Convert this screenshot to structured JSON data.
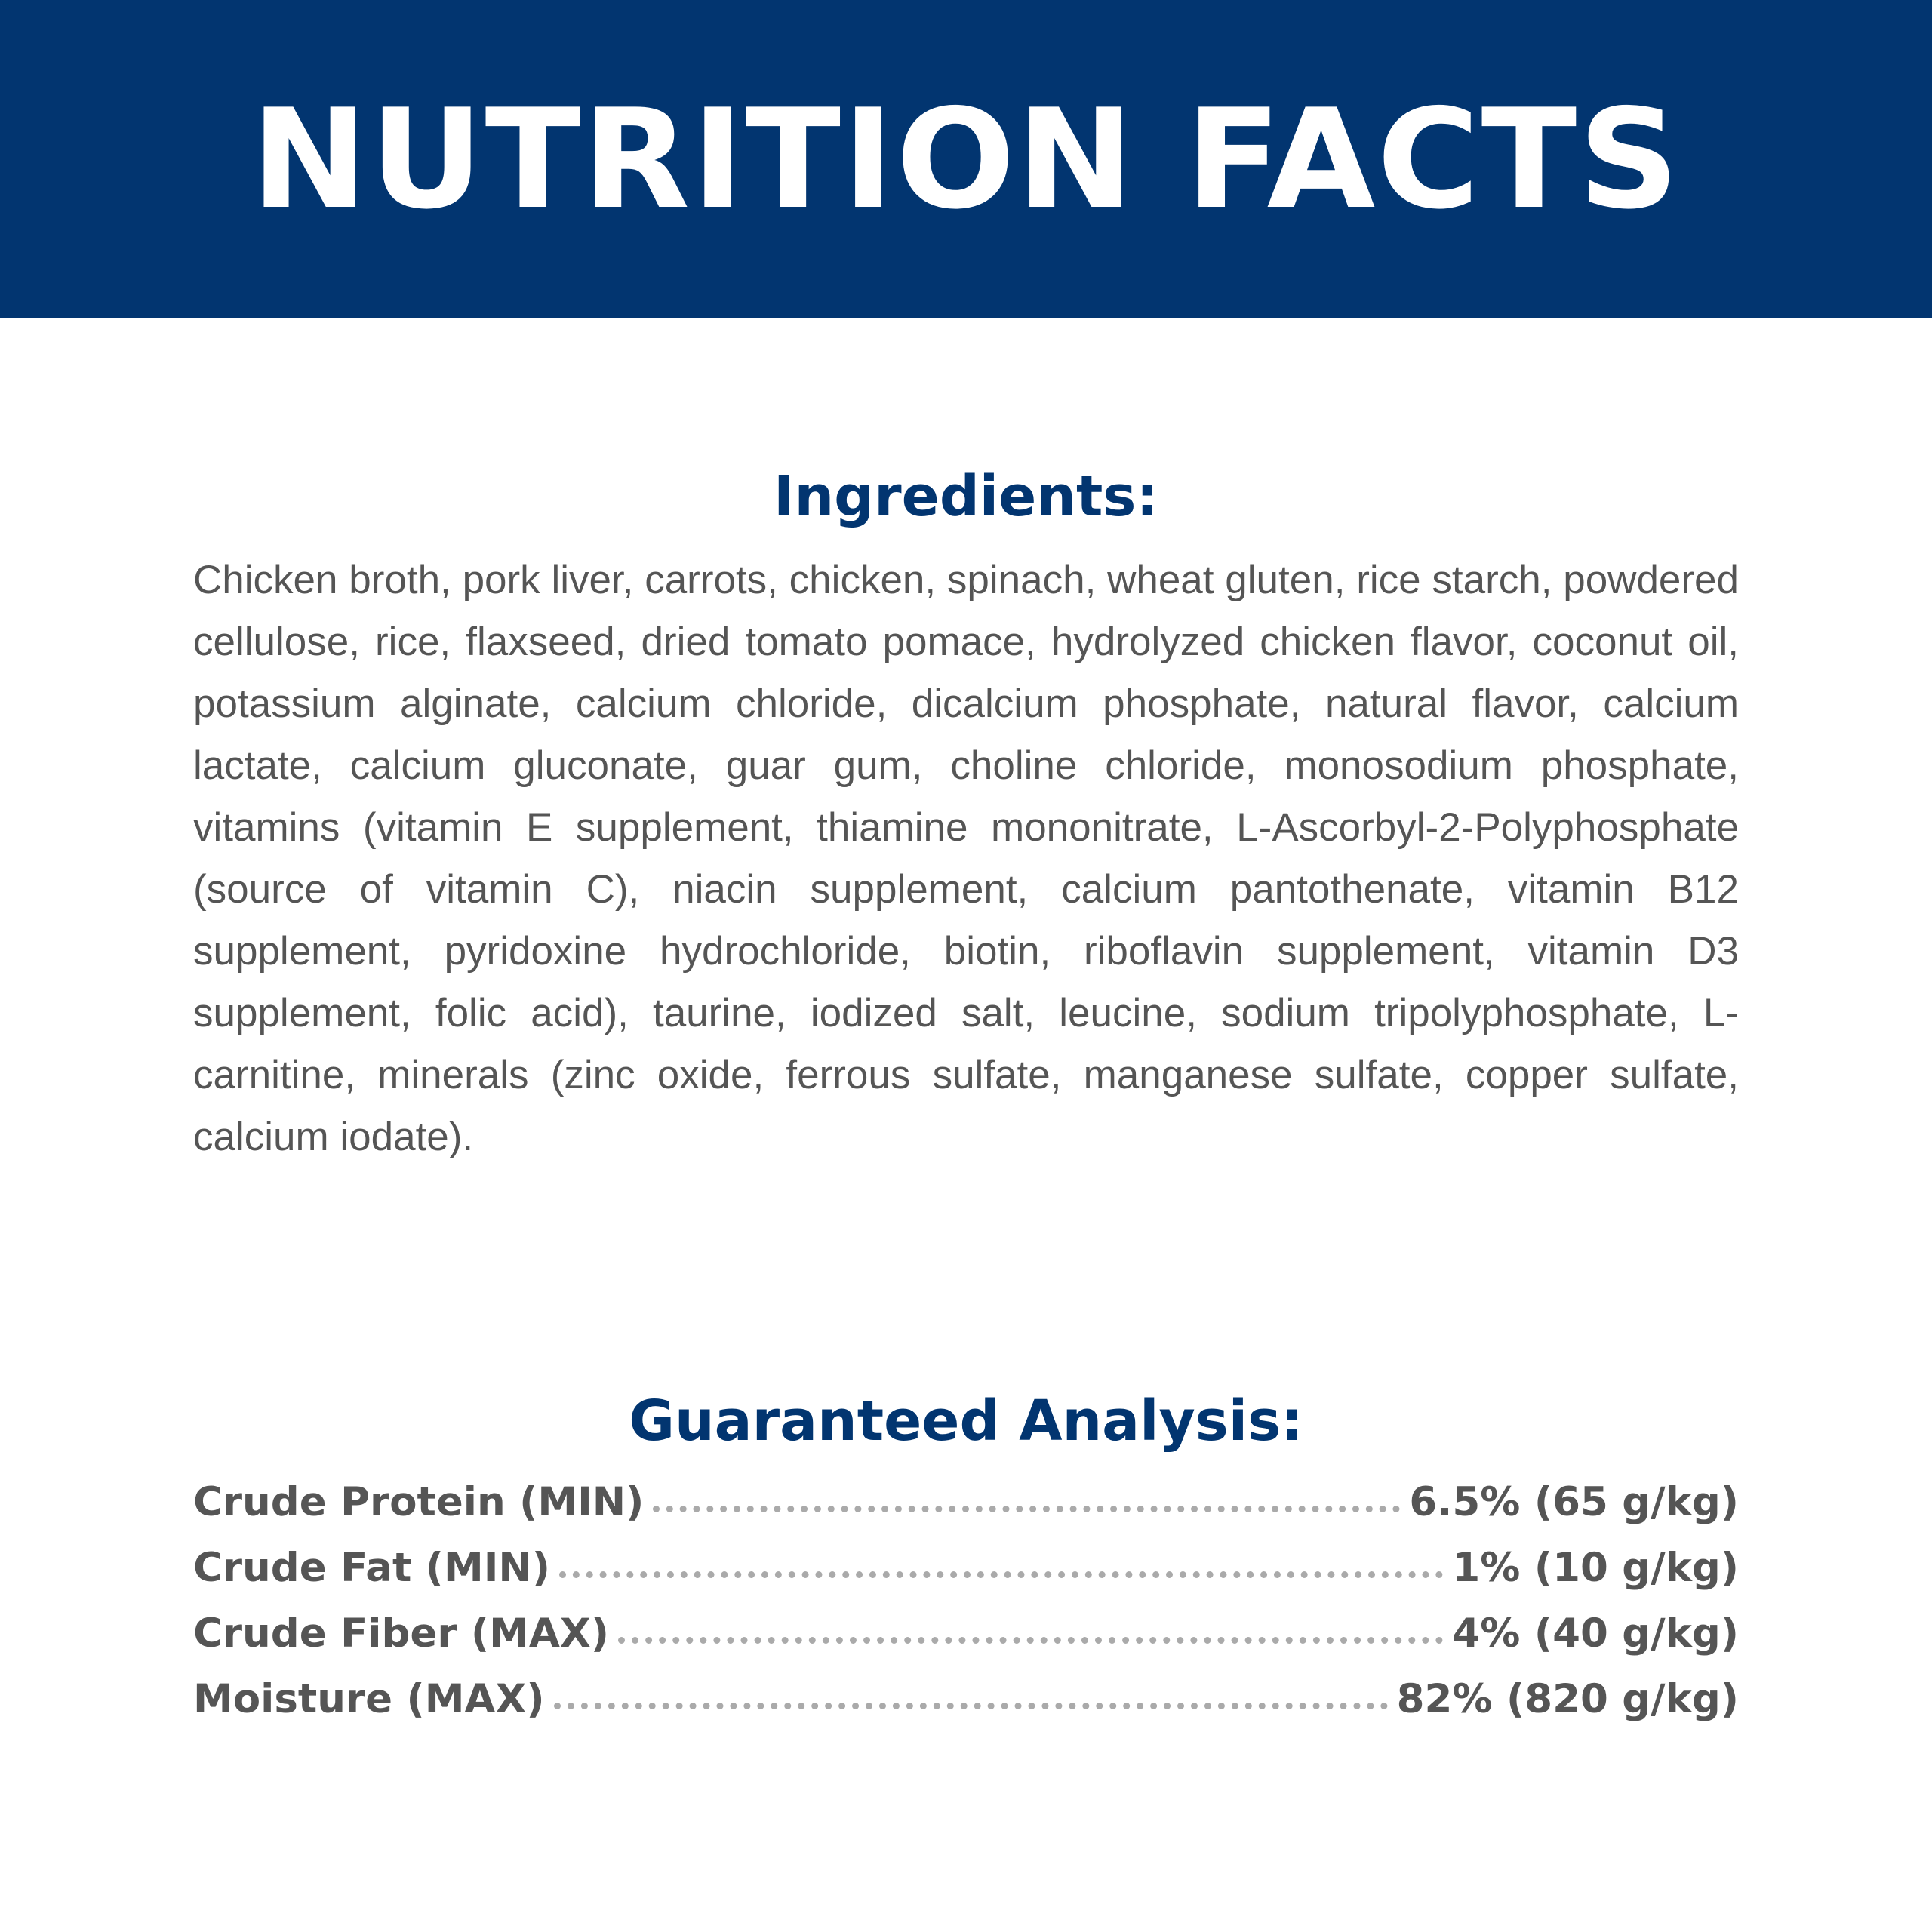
{
  "header": {
    "title": "NUTRITION FACTS"
  },
  "ingredients": {
    "heading": "Ingredients:",
    "text": "Chicken broth, pork liver, carrots, chicken, spinach, wheat gluten, rice starch, powdered cellulose, rice, flaxseed, dried tomato pomace, hydrolyzed chicken flavor, coconut oil, potassium alginate, calcium chloride, dicalcium phosphate, natural flavor, calcium lactate, calcium gluconate, guar gum, choline chloride, monosodium phosphate, vitamins (vitamin E supplement, thiamine mononitrate, L-Ascorbyl-2-Polyphosphate (source of vitamin C), niacin supplement, calcium pantothenate, vitamin B12 supplement, pyridoxine hydrochloride, biotin, riboflavin supplement, vitamin D3 supplement, folic acid), taurine, iodized salt, leucine, sodium tripolyphosphate, L-carnitine, minerals (zinc oxide, ferrous sulfate, manganese sulfate, copper sulfate, calcium iodate)."
  },
  "analysis": {
    "heading": "Guaranteed Analysis:",
    "rows": [
      {
        "label": "Crude Protein (MIN)",
        "value": "6.5% (65 g/kg)"
      },
      {
        "label": "Crude Fat (MIN)",
        "value": "1% (10 g/kg)"
      },
      {
        "label": "Crude Fiber (MAX)",
        "value": "4% (40 g/kg)"
      },
      {
        "label": "Moisture (MAX)",
        "value": "82% (820 g/kg)"
      }
    ]
  },
  "colors": {
    "brand_navy": "#023570",
    "body_text": "#555555",
    "leader_dots": "#aaaaaa"
  }
}
